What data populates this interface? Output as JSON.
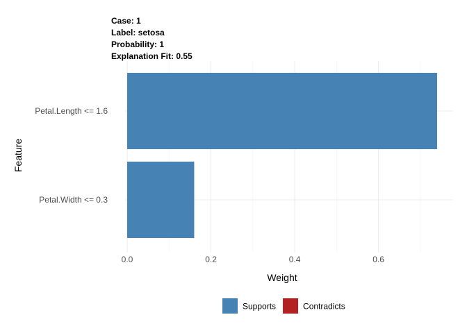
{
  "chart_data": {
    "type": "bar",
    "orientation": "horizontal",
    "header": [
      {
        "label": "Case",
        "value": "1"
      },
      {
        "label": "Label",
        "value": "setosa"
      },
      {
        "label": "Probability",
        "value": "1"
      },
      {
        "label": "Explanation Fit",
        "value": "0.55"
      }
    ],
    "header_lines": [
      "Case: 1",
      "Label: setosa",
      "Probability: 1",
      "Explanation Fit: 0.55"
    ],
    "categories": [
      "Petal.Length <= 1.6",
      "Petal.Width <= 0.3"
    ],
    "values": [
      0.74,
      0.16
    ],
    "bar_type": [
      "Supports",
      "Supports"
    ],
    "xlabel": "Weight",
    "ylabel": "Feature",
    "xlim": [
      0,
      0.74
    ],
    "xticks": [
      0.0,
      0.2,
      0.4,
      0.6
    ],
    "xtick_labels": [
      "0.0",
      "0.2",
      "0.4",
      "0.6"
    ],
    "grid": true,
    "legend_position": "bottom",
    "legend": [
      {
        "name": "Supports",
        "color": "#4682b4"
      },
      {
        "name": "Contradicts",
        "color": "#b22222"
      }
    ]
  }
}
